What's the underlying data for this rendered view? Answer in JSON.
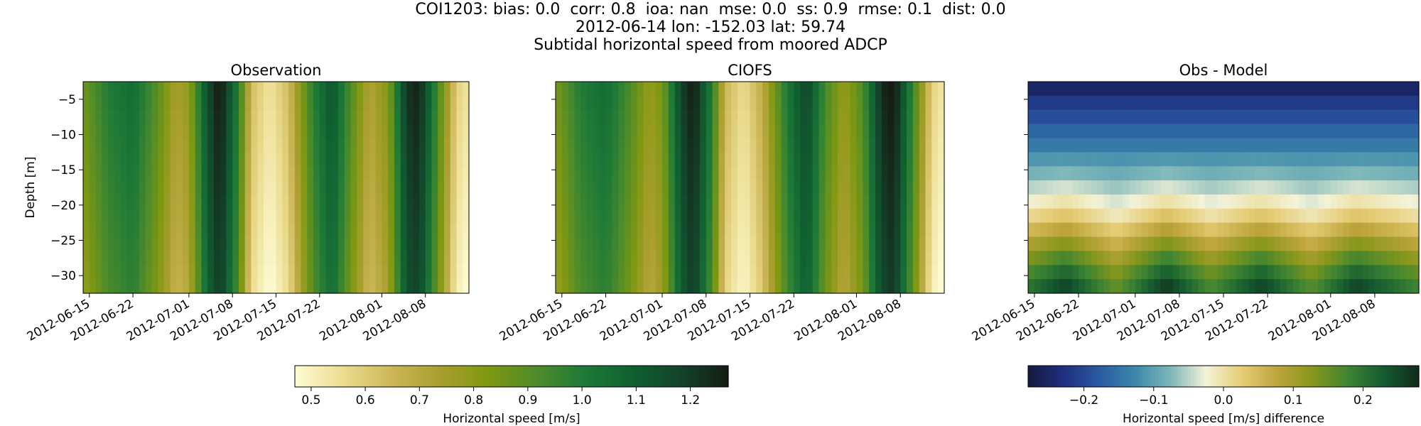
{
  "figure": {
    "title_lines": [
      "COI1203: bias: 0.0  corr: 0.8  ioa: nan  mse: 0.0  ss: 0.9  rmse: 0.1  dist: 0.0",
      "2012-06-14 lon: -152.03 lat: 59.74",
      "Subtidal horizontal speed from moored ADCP"
    ]
  },
  "chart_data": [
    {
      "type": "heatmap",
      "title": "Observation",
      "ylabel": "Depth [m]",
      "xlabel": "",
      "x_tick_labels": [
        "2012-06-15",
        "2012-06-22",
        "2012-07-01",
        "2012-07-08",
        "2012-07-15",
        "2012-07-22",
        "2012-08-01",
        "2012-08-08"
      ],
      "y_ticks": [
        -5,
        -10,
        -15,
        -20,
        -25,
        -30
      ],
      "ylim": [
        -32.5,
        -2.5
      ],
      "x_range_dates": [
        "2012-06-14",
        "2012-08-15"
      ],
      "colormap": "speed",
      "value_range": [
        0.47,
        1.27
      ],
      "time_profile": [
        [
          "2012-06-14",
          0.82
        ],
        [
          "2012-06-18",
          0.96
        ],
        [
          "2012-06-22",
          1.02
        ],
        [
          "2012-06-26",
          0.86
        ],
        [
          "2012-06-29",
          0.7
        ],
        [
          "2012-07-01",
          0.75
        ],
        [
          "2012-07-04",
          1.12
        ],
        [
          "2012-07-06",
          1.25
        ],
        [
          "2012-07-09",
          0.95
        ],
        [
          "2012-07-11",
          0.6
        ],
        [
          "2012-07-14",
          0.5
        ],
        [
          "2012-07-17",
          0.6
        ],
        [
          "2012-07-21",
          0.95
        ],
        [
          "2012-07-24",
          1.1
        ],
        [
          "2012-07-27",
          0.88
        ],
        [
          "2012-07-30",
          0.68
        ],
        [
          "2012-08-02",
          0.78
        ],
        [
          "2012-08-05",
          1.18
        ],
        [
          "2012-08-07",
          1.22
        ],
        [
          "2012-08-10",
          0.9
        ],
        [
          "2012-08-13",
          0.55
        ],
        [
          "2012-08-15",
          0.5
        ]
      ]
    },
    {
      "type": "heatmap",
      "title": "CIOFS",
      "ylabel": "",
      "xlabel": "",
      "x_tick_labels": [
        "2012-06-15",
        "2012-06-22",
        "2012-07-01",
        "2012-07-08",
        "2012-07-15",
        "2012-07-22",
        "2012-08-01",
        "2012-08-08"
      ],
      "y_ticks": [
        -5,
        -10,
        -15,
        -20,
        -25,
        -30
      ],
      "ylim": [
        -32.5,
        -2.5
      ],
      "x_range_dates": [
        "2012-06-14",
        "2012-08-15"
      ],
      "colormap": "speed",
      "value_range": [
        0.47,
        1.27
      ],
      "time_profile": [
        [
          "2012-06-14",
          0.8
        ],
        [
          "2012-06-18",
          0.96
        ],
        [
          "2012-06-22",
          1.02
        ],
        [
          "2012-06-26",
          0.88
        ],
        [
          "2012-06-29",
          0.74
        ],
        [
          "2012-07-01",
          0.8
        ],
        [
          "2012-07-04",
          1.14
        ],
        [
          "2012-07-06",
          1.24
        ],
        [
          "2012-07-09",
          0.95
        ],
        [
          "2012-07-11",
          0.62
        ],
        [
          "2012-07-14",
          0.52
        ],
        [
          "2012-07-17",
          0.65
        ],
        [
          "2012-07-21",
          0.98
        ],
        [
          "2012-07-24",
          1.14
        ],
        [
          "2012-07-27",
          0.9
        ],
        [
          "2012-07-30",
          0.74
        ],
        [
          "2012-08-02",
          0.88
        ],
        [
          "2012-08-05",
          1.2
        ],
        [
          "2012-08-07",
          1.25
        ],
        [
          "2012-08-10",
          0.92
        ],
        [
          "2012-08-13",
          0.55
        ],
        [
          "2012-08-15",
          0.49
        ]
      ]
    },
    {
      "type": "heatmap",
      "title": "Obs - Model",
      "ylabel": "",
      "xlabel": "",
      "x_tick_labels": [
        "2012-06-15",
        "2012-06-22",
        "2012-07-01",
        "2012-07-08",
        "2012-07-15",
        "2012-07-22",
        "2012-08-01",
        "2012-08-08"
      ],
      "y_ticks": [
        -5,
        -10,
        -15,
        -20,
        -25,
        -30
      ],
      "ylim": [
        -32.5,
        -2.5
      ],
      "x_range_dates": [
        "2012-06-14",
        "2012-08-15"
      ],
      "colormap": "diff",
      "value_range": [
        -0.28,
        0.28
      ],
      "depth_profile": [
        [
          -3,
          -0.26
        ],
        [
          -5,
          -0.22
        ],
        [
          -7,
          -0.2
        ],
        [
          -9,
          -0.17
        ],
        [
          -11,
          -0.15
        ],
        [
          -13,
          -0.12
        ],
        [
          -15,
          -0.09
        ],
        [
          -17,
          -0.06
        ],
        [
          -19,
          -0.03
        ],
        [
          -21,
          0.0
        ],
        [
          -23,
          0.04
        ],
        [
          -25,
          0.08
        ],
        [
          -27,
          0.12
        ],
        [
          -29,
          0.16
        ],
        [
          -31,
          0.19
        ],
        [
          -32.5,
          0.21
        ]
      ],
      "time_modulation": [
        [
          "2012-06-14",
          0.0
        ],
        [
          "2012-06-20",
          0.06
        ],
        [
          "2012-06-28",
          -0.05
        ],
        [
          "2012-07-06",
          0.07
        ],
        [
          "2012-07-13",
          -0.03
        ],
        [
          "2012-07-21",
          0.06
        ],
        [
          "2012-07-29",
          -0.04
        ],
        [
          "2012-08-05",
          0.06
        ],
        [
          "2012-08-15",
          -0.02
        ]
      ]
    }
  ],
  "colorbars": [
    {
      "label": "Horizontal speed [m/s]",
      "ticks": [
        "0.5",
        "0.6",
        "0.7",
        "0.8",
        "0.9",
        "1.0",
        "1.1",
        "1.2"
      ],
      "tick_values": [
        0.5,
        0.6,
        0.7,
        0.8,
        0.9,
        1.0,
        1.1,
        1.2
      ],
      "range": [
        0.47,
        1.27
      ],
      "colormap": "speed"
    },
    {
      "label": "Horizontal speed [m/s] difference",
      "ticks": [
        "−0.2",
        "−0.1",
        "0.0",
        "0.1",
        "0.2"
      ],
      "tick_values": [
        -0.2,
        -0.1,
        0.0,
        0.1,
        0.2
      ],
      "range": [
        -0.28,
        0.28
      ],
      "colormap": "diff"
    }
  ],
  "colormaps": {
    "speed": [
      "#fdfbd3",
      "#ebdc8f",
      "#cdb758",
      "#a99f2e",
      "#7f9811",
      "#4f8c2a",
      "#1e7a37",
      "#0f6131",
      "#14432a",
      "#151d12"
    ],
    "diff": [
      "#141a3e",
      "#1f2f80",
      "#2a5aa2",
      "#3b87aa",
      "#7cb6b9",
      "#f3f3d8",
      "#e6cd76",
      "#bfa53c",
      "#87971b",
      "#3f8532",
      "#155c31",
      "#112a1b"
    ]
  }
}
